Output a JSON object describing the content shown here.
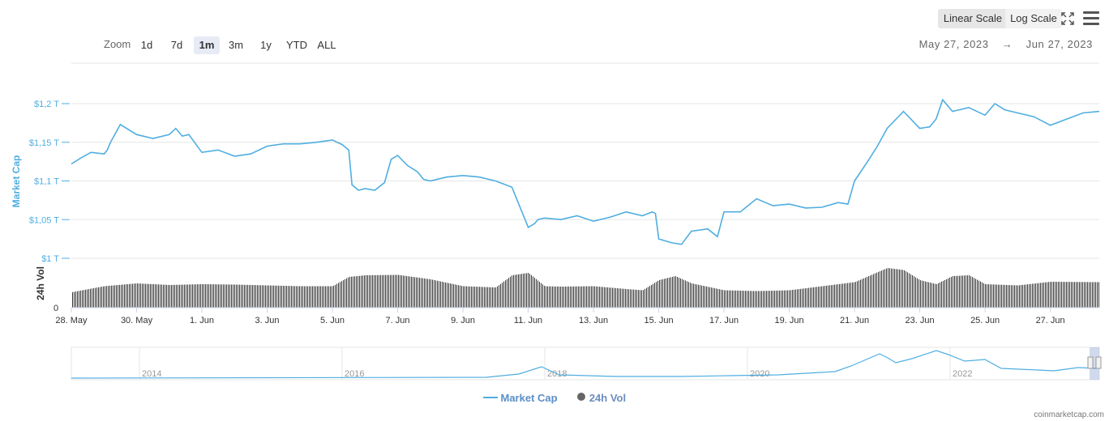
{
  "toolbar": {
    "zoom_label": "Zoom",
    "zoom_buttons": [
      "1d",
      "7d",
      "1m",
      "3m",
      "1y",
      "YTD",
      "ALL"
    ],
    "zoom_selected": "1m",
    "linear_scale_label": "Linear Scale",
    "log_scale_label": "Log Scale",
    "scale_selected": "Linear Scale",
    "range_from": "May 27, 2023",
    "range_arrow": "→",
    "range_to": "Jun 27, 2023"
  },
  "legend": {
    "market_cap": "Market Cap",
    "volume": "24h Vol"
  },
  "credits": "coinmarketcap.com",
  "colors": {
    "line": "#4faee1",
    "volume": "#333333",
    "axis_label": "#4faee1",
    "selected_zoom_bg": "#e6ebf5"
  },
  "chart_data": {
    "type": "line",
    "ylabel": "Market Cap",
    "yticks": [
      "$1 T",
      "$1,05 T",
      "$1,1 T",
      "$1,15 T",
      "$1,2 T"
    ],
    "ytick_values": [
      1.0,
      1.05,
      1.1,
      1.15,
      1.2
    ],
    "ylim": [
      1.0,
      1.2
    ],
    "xlim": [
      0,
      31.5
    ],
    "xticks": [
      "28. May",
      "30. May",
      "1. Jun",
      "3. Jun",
      "5. Jun",
      "7. Jun",
      "9. Jun",
      "11. Jun",
      "13. Jun",
      "15. Jun",
      "17. Jun",
      "19. Jun",
      "21. Jun",
      "23. Jun",
      "25. Jun",
      "27. Jun"
    ],
    "xtick_values": [
      0,
      2,
      4,
      6,
      8,
      10,
      12,
      14,
      16,
      18,
      20,
      22,
      24,
      26,
      28,
      30
    ],
    "series": [
      {
        "name": "Market Cap",
        "x": [
          0,
          0.3,
          0.6,
          1,
          1.1,
          1.2,
          1.5,
          2,
          2.5,
          3,
          3.2,
          3.4,
          3.6,
          4,
          4.5,
          5,
          5.5,
          6,
          6.5,
          7,
          7.5,
          8,
          8.3,
          8.5,
          8.6,
          8.8,
          9,
          9.3,
          9.6,
          9.8,
          10,
          10.3,
          10.6,
          10.8,
          11,
          11.5,
          12,
          12.5,
          13,
          13.5,
          14,
          14.2,
          14.3,
          14.5,
          15,
          15.5,
          16,
          16.5,
          17,
          17.5,
          17.8,
          17.9,
          18,
          18.4,
          18.7,
          19,
          19.5,
          19.8,
          20,
          20.5,
          21,
          21.5,
          22,
          22.5,
          23,
          23.5,
          23.8,
          24,
          24.4,
          24.7,
          25,
          25.5,
          26,
          26.3,
          26.5,
          26.7,
          27,
          27.5,
          28,
          28.3,
          28.6,
          29,
          29.5,
          30,
          30.5,
          31,
          31.5
        ],
        "y": [
          1.122,
          1.13,
          1.137,
          1.135,
          1.14,
          1.15,
          1.173,
          1.16,
          1.155,
          1.16,
          1.168,
          1.158,
          1.16,
          1.137,
          1.14,
          1.132,
          1.135,
          1.145,
          1.148,
          1.148,
          1.15,
          1.153,
          1.147,
          1.14,
          1.095,
          1.088,
          1.09,
          1.088,
          1.098,
          1.128,
          1.133,
          1.12,
          1.112,
          1.102,
          1.1,
          1.105,
          1.107,
          1.105,
          1.1,
          1.092,
          1.04,
          1.045,
          1.05,
          1.052,
          1.05,
          1.055,
          1.048,
          1.053,
          1.06,
          1.055,
          1.06,
          1.058,
          1.025,
          1.02,
          1.018,
          1.035,
          1.038,
          1.028,
          1.06,
          1.06,
          1.077,
          1.068,
          1.07,
          1.065,
          1.066,
          1.072,
          1.07,
          1.1,
          1.125,
          1.145,
          1.168,
          1.19,
          1.168,
          1.17,
          1.18,
          1.205,
          1.19,
          1.195,
          1.185,
          1.2,
          1.192,
          1.188,
          1.183,
          1.172,
          1.18,
          1.188,
          1.19
        ]
      },
      {
        "name": "24h Vol",
        "x": [
          0,
          1,
          2,
          3,
          4,
          5,
          6,
          7,
          8,
          8.5,
          9,
          10,
          11,
          12,
          13,
          13.5,
          14,
          14.5,
          15,
          16,
          17,
          17.5,
          18,
          18.5,
          19,
          20,
          21,
          22,
          23,
          24,
          25,
          25.5,
          26,
          26.5,
          27,
          27.5,
          28,
          29,
          30,
          31.5
        ],
        "y": [
          0.3,
          0.45,
          0.52,
          0.48,
          0.5,
          0.49,
          0.47,
          0.45,
          0.45,
          0.68,
          0.72,
          0.73,
          0.62,
          0.45,
          0.42,
          0.72,
          0.78,
          0.45,
          0.44,
          0.45,
          0.38,
          0.35,
          0.6,
          0.7,
          0.52,
          0.35,
          0.33,
          0.35,
          0.45,
          0.55,
          0.9,
          0.85,
          0.6,
          0.5,
          0.7,
          0.72,
          0.5,
          0.47,
          0.56,
          0.55
        ]
      }
    ],
    "navigator": {
      "xticks": [
        "2014",
        "2016",
        "2018",
        "2020",
        "2022"
      ]
    }
  }
}
